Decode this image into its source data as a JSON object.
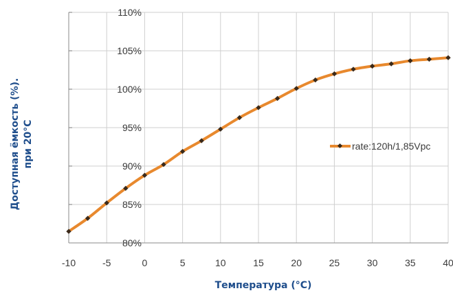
{
  "chart_data": {
    "type": "line",
    "xlabel": "Температура (°C)",
    "ylabel_line1": "Доступная ёмкость (%).",
    "ylabel_line2": "при 20°C",
    "xlim": [
      -10,
      40
    ],
    "ylim": [
      80,
      110
    ],
    "x_ticks": [
      "-10",
      "-5",
      "0",
      "5",
      "10",
      "15",
      "20",
      "25",
      "30",
      "35",
      "40"
    ],
    "y_ticks": [
      "80%",
      "85%",
      "90%",
      "95%",
      "100%",
      "105%",
      "110%"
    ],
    "grid": true,
    "legend_position": "right",
    "series": [
      {
        "name": "rate:120h/1,85Vpc",
        "line_color": "#e8892e",
        "marker_color": "#3b2a1a",
        "x": [
          -10,
          -7.5,
          -5,
          -2.5,
          0,
          2.5,
          5,
          7.5,
          10,
          12.5,
          15,
          17.5,
          20,
          22.5,
          25,
          27.5,
          30,
          32.5,
          35,
          37.5,
          40
        ],
        "y": [
          81.5,
          83.2,
          85.2,
          87.1,
          88.8,
          90.2,
          91.9,
          93.3,
          94.8,
          96.3,
          97.6,
          98.8,
          100.1,
          101.2,
          102.0,
          102.6,
          103.0,
          103.3,
          103.7,
          103.9,
          104.1
        ]
      }
    ]
  }
}
